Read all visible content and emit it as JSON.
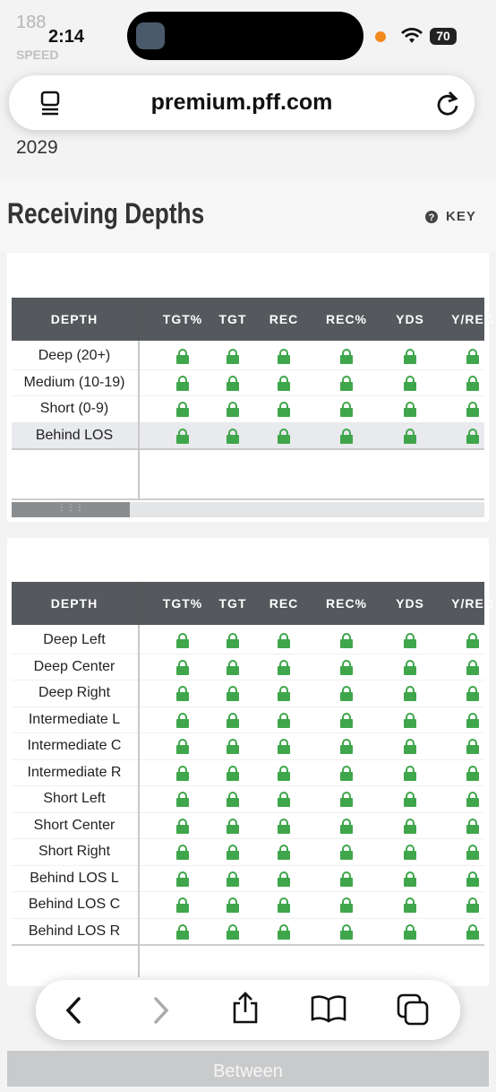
{
  "status_bar": {
    "time": "2:14",
    "battery": "70"
  },
  "background_profile": {
    "weight_value": "188",
    "speed_label": "SPEED",
    "draft_value": "2029"
  },
  "address_bar": {
    "url": "premium.pff.com"
  },
  "section": {
    "title": "Receiving Depths",
    "key": "KEY"
  },
  "tables": [
    {
      "columns": [
        "DEPTH",
        "TGT%",
        "TGT",
        "REC",
        "REC%",
        "YDS",
        "Y/REC"
      ],
      "rows": [
        "Deep (20+)",
        "Medium (10-19)",
        "Short (0-9)",
        "Behind LOS"
      ]
    },
    {
      "columns": [
        "DEPTH",
        "TGT%",
        "TGT",
        "REC",
        "REC%",
        "YDS",
        "Y/REC"
      ],
      "rows": [
        "Deep Left",
        "Deep Center",
        "Deep Right",
        "Intermediate L",
        "Intermediate C",
        "Intermediate R",
        "Short Left",
        "Short Center",
        "Short Right",
        "Behind LOS L",
        "Behind LOS C",
        "Behind LOS R"
      ]
    }
  ],
  "footer_button": "Between"
}
